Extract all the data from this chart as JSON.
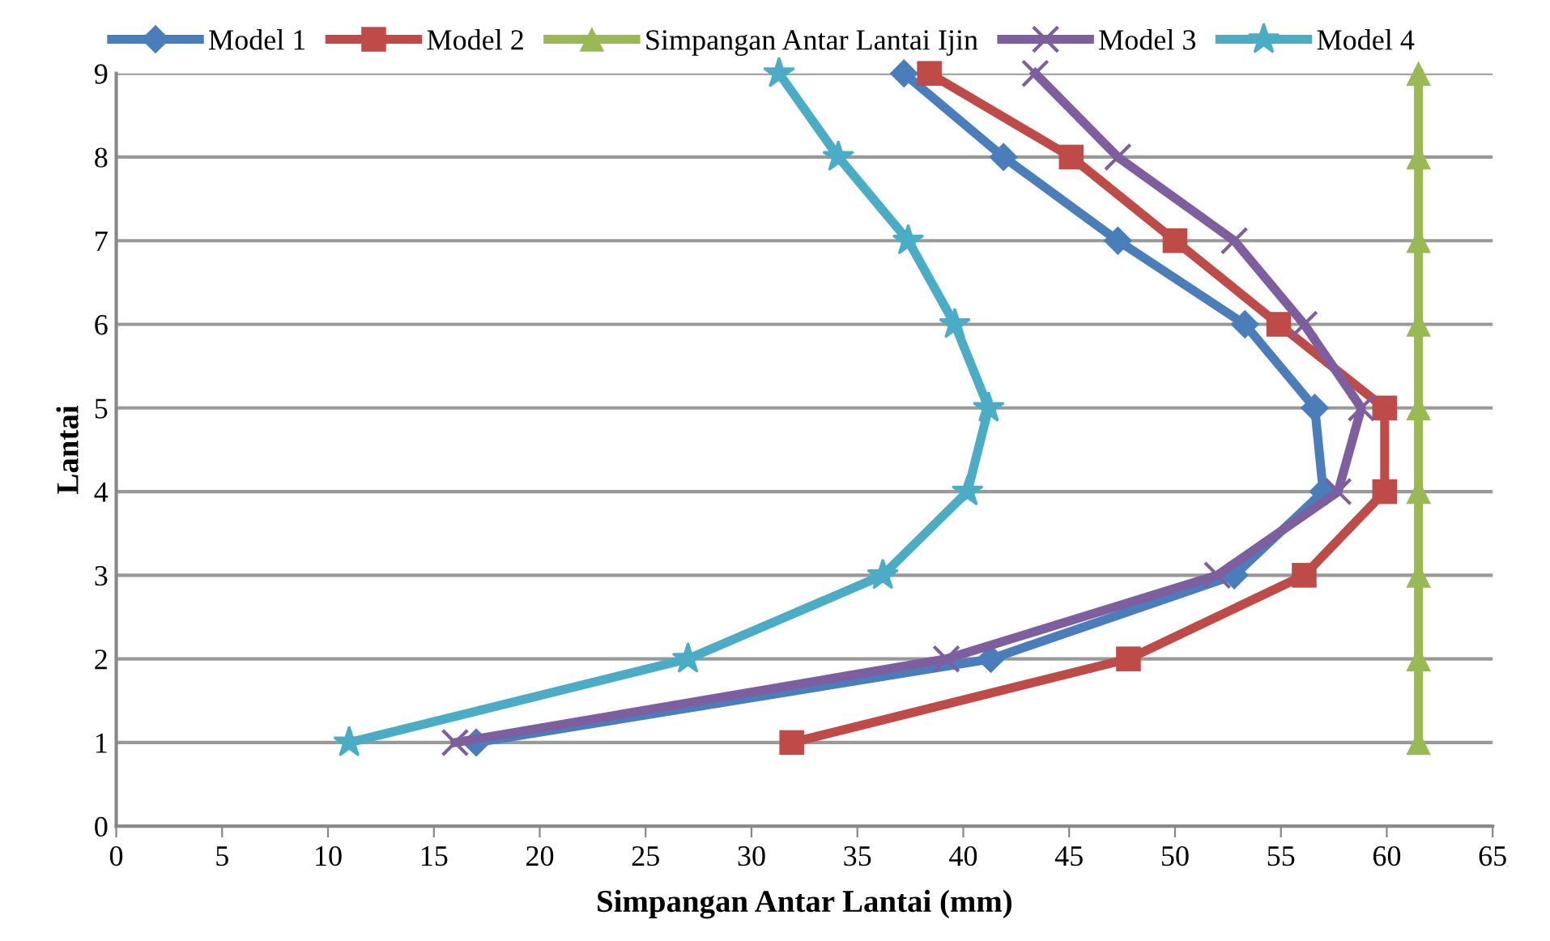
{
  "chart_data": {
    "type": "line",
    "xlabel": "Simpangan Antar Lantai (mm)",
    "ylabel": "Lantai",
    "xlim": [
      0,
      65
    ],
    "xticks": [
      0,
      5,
      10,
      15,
      20,
      25,
      30,
      35,
      40,
      45,
      50,
      55,
      60,
      65
    ],
    "ylim": [
      0,
      9
    ],
    "yticks": [
      0,
      1,
      2,
      3,
      4,
      5,
      6,
      7,
      8,
      9
    ],
    "grid": "y",
    "legend": "top",
    "line_style": "solid",
    "series": [
      {
        "name": "Model 1",
        "color": "#4a7ebb",
        "marker": "diamond",
        "x": [
          17.0,
          41.3,
          52.8,
          57.0,
          56.6,
          53.3,
          47.3,
          41.9,
          37.2
        ],
        "values": [
          1,
          2,
          3,
          4,
          5,
          6,
          7,
          8,
          9
        ]
      },
      {
        "name": "Model 2",
        "color": "#be4b48",
        "marker": "square",
        "x": [
          31.9,
          47.8,
          56.1,
          59.9,
          59.9,
          54.9,
          50.0,
          45.1,
          38.4
        ],
        "values": [
          1,
          2,
          3,
          4,
          5,
          6,
          7,
          8,
          9
        ]
      },
      {
        "name": "Simpangan Antar Lantai Ijin",
        "color": "#98b954",
        "marker": "triangle",
        "x": [
          61.5,
          61.5,
          61.5,
          61.5,
          61.5,
          61.5,
          61.5,
          61.5,
          61.5
        ],
        "values": [
          1,
          2,
          3,
          4,
          5,
          6,
          7,
          8,
          9
        ]
      },
      {
        "name": "Model 3",
        "color": "#7d5fa0",
        "marker": "cross",
        "x": [
          16.0,
          39.2,
          52.0,
          57.7,
          58.8,
          56.1,
          52.8,
          47.3,
          43.4
        ],
        "values": [
          1,
          2,
          3,
          4,
          5,
          6,
          7,
          8,
          9
        ]
      },
      {
        "name": "Model 4",
        "color": "#4bacc6",
        "marker": "star",
        "x": [
          11.0,
          27.0,
          36.2,
          40.2,
          41.2,
          39.6,
          37.4,
          34.1,
          31.3
        ],
        "values": [
          1,
          2,
          3,
          4,
          5,
          6,
          7,
          8,
          9
        ]
      }
    ]
  }
}
